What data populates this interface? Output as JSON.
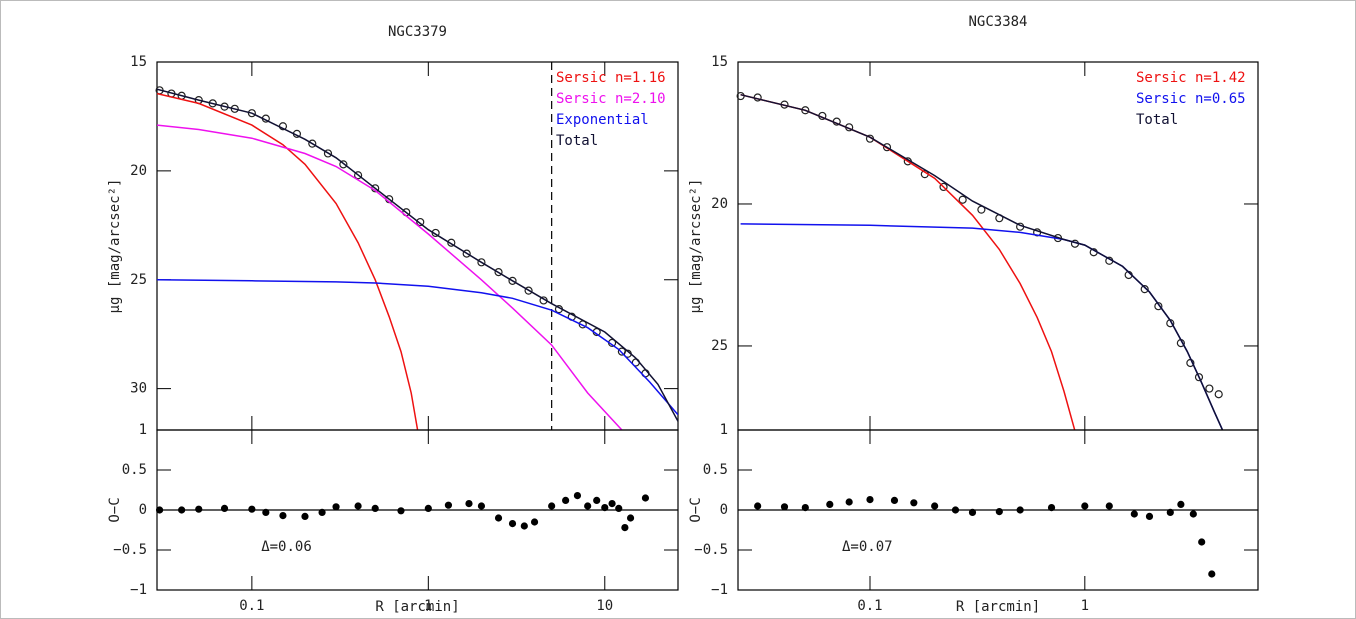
{
  "chart_data": [
    {
      "type": "line",
      "title": "NGC3379",
      "ylabel": "μg [mag/arcsec²]",
      "xscale": "log",
      "xlim": [
        0.029,
        26
      ],
      "xticks": [
        0.1,
        1,
        10
      ],
      "ylim": [
        31.9,
        15
      ],
      "yticks": [
        15,
        20,
        25,
        30
      ],
      "legend": "upper right",
      "vline": 5,
      "series": [
        {
          "style": "points",
          "color": "#222222",
          "x": [
            0.03,
            0.035,
            0.04,
            0.05,
            0.06,
            0.07,
            0.08,
            0.1,
            0.12,
            0.15,
            0.18,
            0.22,
            0.27,
            0.33,
            0.4,
            0.5,
            0.6,
            0.75,
            0.9,
            1.1,
            1.35,
            1.65,
            2,
            2.5,
            3,
            3.7,
            4.5,
            5.5,
            6.5,
            7.5,
            9,
            11,
            12.5,
            13.5,
            15,
            17
          ],
          "values": [
            16.3,
            16.45,
            16.55,
            16.75,
            16.9,
            17.05,
            17.15,
            17.35,
            17.6,
            17.95,
            18.3,
            18.75,
            19.2,
            19.7,
            20.2,
            20.8,
            21.3,
            21.9,
            22.35,
            22.85,
            23.3,
            23.8,
            24.2,
            24.65,
            25.05,
            25.5,
            25.95,
            26.35,
            26.7,
            27.05,
            27.4,
            27.9,
            28.3,
            28.4,
            28.8,
            29.3
          ]
        },
        {
          "name": "Sersic n=1.16",
          "style": "line",
          "color": "#ee1111",
          "x": [
            0.029,
            0.05,
            0.1,
            0.15,
            0.2,
            0.3,
            0.4,
            0.5,
            0.6,
            0.7,
            0.8,
            0.87
          ],
          "values": [
            16.45,
            16.9,
            17.9,
            18.8,
            19.7,
            21.5,
            23.3,
            25.0,
            26.7,
            28.3,
            30.2,
            31.9
          ]
        },
        {
          "name": "Sersic n=2.10",
          "style": "line",
          "color": "#ee11ee",
          "x": [
            0.029,
            0.05,
            0.1,
            0.2,
            0.3,
            0.5,
            1,
            2,
            3,
            5,
            8,
            12.5
          ],
          "values": [
            17.9,
            18.1,
            18.5,
            19.2,
            19.8,
            20.9,
            22.9,
            25.0,
            26.3,
            28.0,
            30.2,
            31.9
          ]
        },
        {
          "name": "Exponential",
          "style": "line",
          "color": "#1111ee",
          "x": [
            0.029,
            0.1,
            0.3,
            0.5,
            1,
            2,
            3,
            5,
            8,
            12,
            18,
            26
          ],
          "values": [
            25.0,
            25.05,
            25.1,
            25.15,
            25.3,
            25.6,
            25.85,
            26.4,
            27.2,
            28.2,
            29.7,
            31.2
          ]
        },
        {
          "name": "Total",
          "style": "line",
          "color": "#111133",
          "x": [
            0.029,
            0.05,
            0.1,
            0.2,
            0.3,
            0.5,
            1,
            2,
            3,
            5,
            10,
            15,
            20,
            26
          ],
          "values": [
            16.25,
            16.75,
            17.35,
            18.55,
            19.4,
            20.8,
            22.7,
            24.2,
            25.05,
            26.1,
            27.4,
            28.6,
            29.8,
            31.5
          ]
        }
      ]
    },
    {
      "type": "scatter",
      "xlabel": "R [arcmin]",
      "ylabel": "O−C",
      "xscale": "log",
      "annotation": "Δ=0.06",
      "xlim": [
        0.029,
        26
      ],
      "xticks": [
        0.1,
        1,
        10
      ],
      "ylim": [
        -1,
        1
      ],
      "yticks": [
        {
          "value": -1,
          "label": "−1"
        },
        {
          "value": -0.5,
          "label": "−0.5"
        },
        0,
        0.5,
        1
      ],
      "hline": 0,
      "series": [
        {
          "color": "#000000",
          "x": [
            0.03,
            0.04,
            0.05,
            0.07,
            0.1,
            0.12,
            0.15,
            0.2,
            0.25,
            0.3,
            0.4,
            0.5,
            0.7,
            1,
            1.3,
            1.7,
            2,
            2.5,
            3,
            3.5,
            4,
            5,
            6,
            7,
            8,
            9,
            10,
            11,
            12,
            13,
            14,
            17
          ],
          "values": [
            0,
            0,
            0.01,
            0.02,
            0.01,
            -0.03,
            -0.07,
            -0.08,
            -0.03,
            0.04,
            0.05,
            0.02,
            -0.01,
            0.02,
            0.06,
            0.08,
            0.05,
            -0.1,
            -0.17,
            -0.2,
            -0.15,
            0.05,
            0.12,
            0.18,
            0.05,
            0.12,
            0.03,
            0.08,
            0.02,
            -0.22,
            -0.1,
            0.15
          ]
        }
      ]
    },
    {
      "type": "line",
      "title": "NGC3384",
      "ylabel": "μg [mag/arcsec²]",
      "xscale": "log",
      "xlim": [
        0.0243,
        6.4
      ],
      "xticks": [
        0.1,
        1
      ],
      "ylim": [
        27.96,
        15
      ],
      "yticks": [
        15,
        20,
        25
      ],
      "legend": "upper right",
      "series": [
        {
          "style": "points",
          "color": "#222222",
          "x": [
            0.025,
            0.03,
            0.04,
            0.05,
            0.06,
            0.07,
            0.08,
            0.1,
            0.12,
            0.15,
            0.18,
            0.22,
            0.27,
            0.33,
            0.4,
            0.5,
            0.6,
            0.75,
            0.9,
            1.1,
            1.3,
            1.6,
            1.9,
            2.2,
            2.5,
            2.8,
            3.1,
            3.4,
            3.8,
            4.2
          ],
          "values": [
            16.2,
            16.25,
            16.5,
            16.7,
            16.9,
            17.1,
            17.3,
            17.7,
            18.0,
            18.5,
            18.95,
            19.4,
            19.85,
            20.2,
            20.5,
            20.8,
            21.0,
            21.2,
            21.4,
            21.7,
            22.0,
            22.5,
            23.0,
            23.6,
            24.2,
            24.9,
            25.6,
            26.1,
            26.5,
            26.7
          ]
        },
        {
          "name": "Sersic n=1.42",
          "style": "line",
          "color": "#ee1111",
          "x": [
            0.025,
            0.05,
            0.1,
            0.2,
            0.3,
            0.4,
            0.5,
            0.6,
            0.7,
            0.8,
            0.9
          ],
          "values": [
            16.15,
            16.7,
            17.65,
            19.1,
            20.4,
            21.6,
            22.8,
            24.0,
            25.2,
            26.6,
            28
          ]
        },
        {
          "name": "Sersic n=0.65",
          "style": "line",
          "color": "#1111ee",
          "x": [
            0.025,
            0.1,
            0.3,
            0.5,
            0.8,
            1,
            1.5,
            2,
            2.5,
            3,
            3.5,
            4,
            4.4
          ],
          "values": [
            20.7,
            20.75,
            20.85,
            21.0,
            21.25,
            21.45,
            22.2,
            23.1,
            24.1,
            25.2,
            26.3,
            27.3,
            28
          ]
        },
        {
          "name": "Total",
          "style": "line",
          "color": "#111133",
          "x": [
            0.025,
            0.05,
            0.1,
            0.2,
            0.3,
            0.5,
            0.8,
            1,
            1.5,
            2,
            2.5,
            3,
            3.5,
            4,
            4.4
          ],
          "values": [
            16.15,
            16.7,
            17.65,
            19.0,
            19.9,
            20.75,
            21.25,
            21.45,
            22.2,
            23.1,
            24.1,
            25.2,
            26.3,
            27.3,
            28
          ]
        }
      ]
    },
    {
      "type": "scatter",
      "xlabel": "R [arcmin]",
      "ylabel": "O−C",
      "xscale": "log",
      "annotation": "Δ=0.07",
      "xlim": [
        0.0243,
        6.4
      ],
      "xticks": [
        0.1,
        1
      ],
      "ylim": [
        -1,
        1
      ],
      "yticks": [
        {
          "value": -1,
          "label": "−1"
        },
        {
          "value": -0.5,
          "label": "−0.5"
        },
        0,
        0.5,
        1
      ],
      "hline": 0,
      "series": [
        {
          "color": "#000000",
          "x": [
            0.03,
            0.04,
            0.05,
            0.065,
            0.08,
            0.1,
            0.13,
            0.16,
            0.2,
            0.25,
            0.3,
            0.4,
            0.5,
            0.7,
            1,
            1.3,
            1.7,
            2,
            2.5,
            2.8,
            3.2,
            3.5,
            3.9
          ],
          "values": [
            0.05,
            0.04,
            0.03,
            0.07,
            0.1,
            0.13,
            0.12,
            0.09,
            0.05,
            0,
            -0.03,
            -0.02,
            0,
            0.03,
            0.05,
            0.05,
            -0.05,
            -0.08,
            -0.03,
            0.07,
            -0.05,
            -0.4,
            -0.8
          ]
        }
      ]
    }
  ]
}
